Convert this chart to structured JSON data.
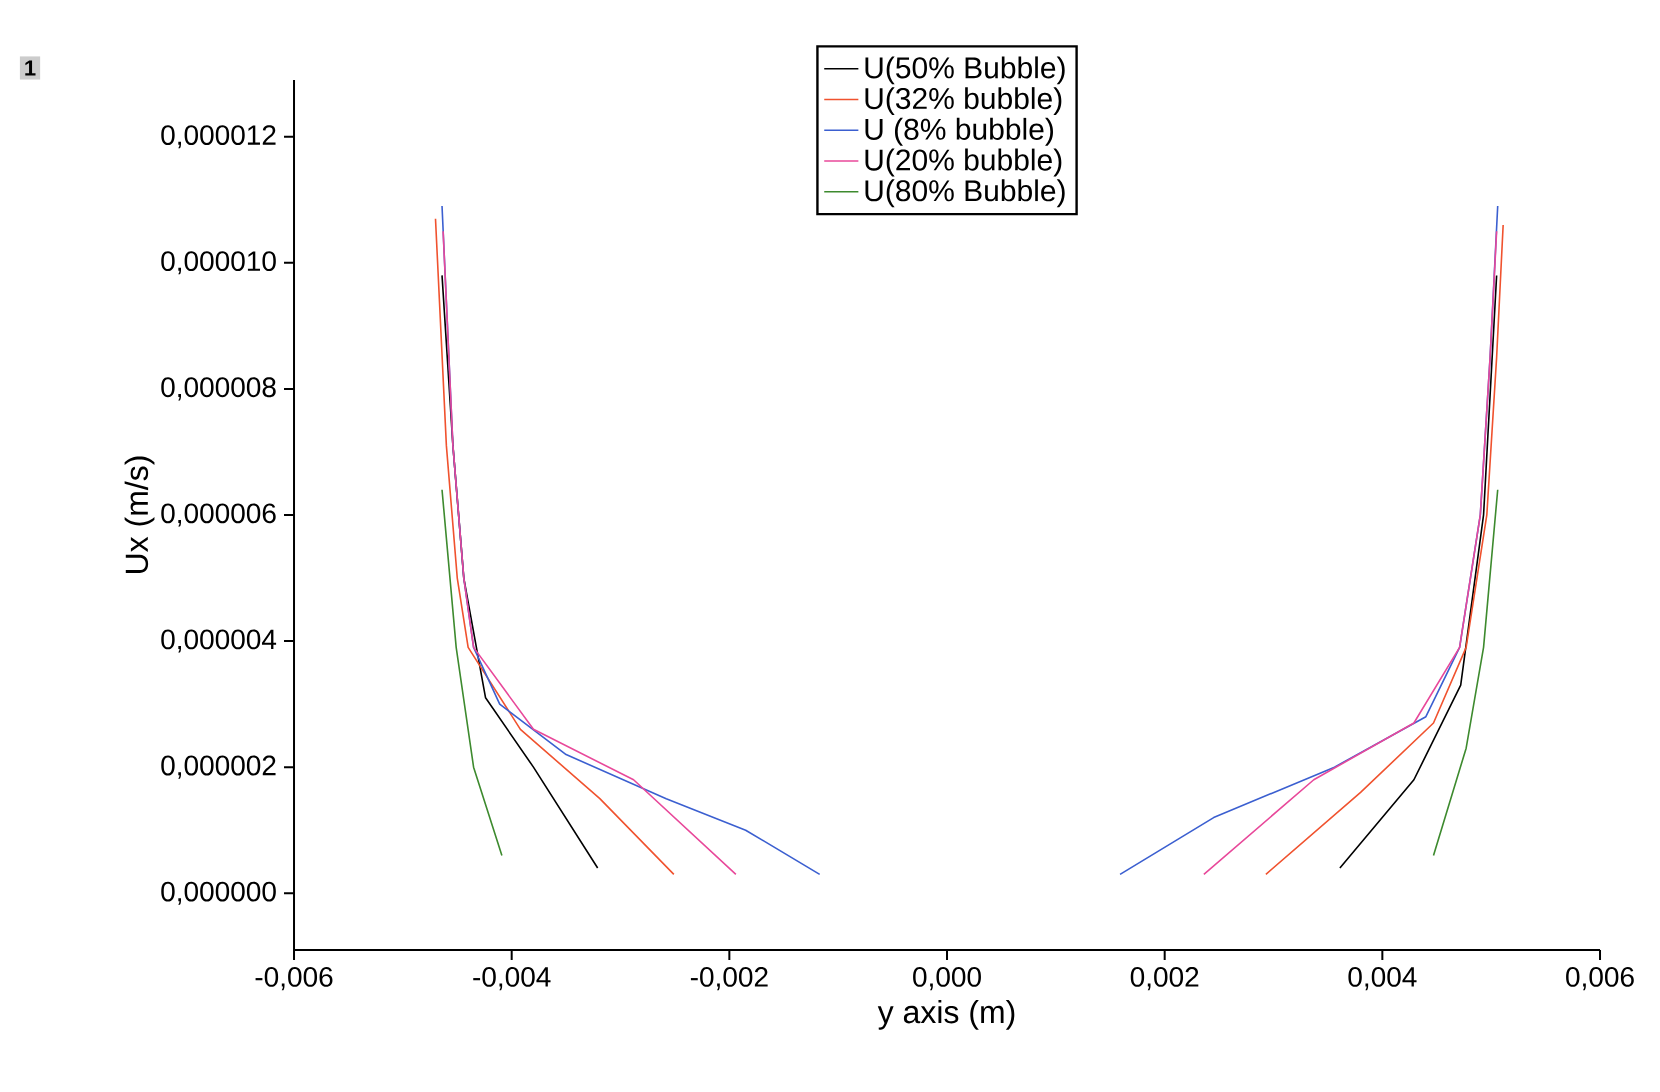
{
  "chart_data": {
    "type": "line",
    "xlabel": "y axis (m)",
    "ylabel": "Ux (m/s)",
    "annotations": [
      "1"
    ],
    "xlim": [
      -0.006,
      0.006
    ],
    "ylim": [
      -9e-07,
      1.29e-05
    ],
    "xticks": [
      {
        "value": -0.006,
        "label": "-0,006"
      },
      {
        "value": -0.004,
        "label": "-0,004"
      },
      {
        "value": -0.002,
        "label": "-0,002"
      },
      {
        "value": 0,
        "label": "0,000"
      },
      {
        "value": 0.002,
        "label": "0,002"
      },
      {
        "value": 0.004,
        "label": "0,004"
      },
      {
        "value": 0.006,
        "label": "0,006"
      }
    ],
    "yticks": [
      {
        "value": 0,
        "label": "0,000000"
      },
      {
        "value": 2e-06,
        "label": "0,000002"
      },
      {
        "value": 4e-06,
        "label": "0,000004"
      },
      {
        "value": 6e-06,
        "label": "0,000006"
      },
      {
        "value": 8e-06,
        "label": "0,000008"
      },
      {
        "value": 1e-05,
        "label": "0,000010"
      },
      {
        "value": 1.2e-05,
        "label": "0,000012"
      }
    ],
    "legend": "top",
    "grid": false,
    "marker": "none",
    "line_style": "solid",
    "series": [
      {
        "name": "U(50% Bubble)",
        "color": "#000000",
        "x": [
          -0.00464,
          -0.00454,
          -0.00444,
          -0.00424,
          -0.0038,
          -0.00321,
          null,
          0.00361,
          0.00429,
          0.00472,
          0.00493,
          0.00505
        ],
        "values": [
          9.8e-06,
          7.1e-06,
          5e-06,
          3.1e-06,
          2e-06,
          4e-07,
          null,
          4e-07,
          1.8e-06,
          3.3e-06,
          6e-06,
          9.8e-06
        ]
      },
      {
        "name": "U(32% bubble)",
        "color": "#f0522e",
        "x": [
          -0.0047,
          -0.0046,
          -0.0045,
          -0.0044,
          -0.00392,
          -0.00319,
          -0.00251,
          null,
          0.00293,
          0.0038,
          0.00447,
          0.00477,
          0.00496,
          0.00505,
          0.00511
        ],
        "values": [
          1.07e-05,
          7.1e-06,
          5e-06,
          3.9e-06,
          2.6e-06,
          1.5e-06,
          3e-07,
          null,
          3e-07,
          1.6e-06,
          2.7e-06,
          3.9e-06,
          6e-06,
          8.5e-06,
          1.06e-05
        ]
      },
      {
        "name": "U (8% bubble)",
        "color": "#3b5fd0",
        "x": [
          -0.00464,
          -0.00454,
          -0.00444,
          -0.00435,
          -0.00411,
          -0.0035,
          -0.00258,
          -0.00185,
          -0.00117,
          null,
          0.00159,
          0.00245,
          0.00356,
          0.0044,
          0.00471,
          0.0049,
          0.00499,
          0.00506
        ],
        "values": [
          1.09e-05,
          7.1e-06,
          5e-06,
          3.9e-06,
          3e-06,
          2.2e-06,
          1.5e-06,
          1e-06,
          3e-07,
          null,
          3e-07,
          1.2e-06,
          2e-06,
          2.8e-06,
          3.9e-06,
          6e-06,
          8.5e-06,
          1.09e-05
        ]
      },
      {
        "name": "U(20% bubble)",
        "color": "#e8489a",
        "x": [
          -0.00463,
          -0.00454,
          -0.00444,
          -0.00435,
          -0.0038,
          -0.00288,
          -0.00194,
          null,
          0.00236,
          0.00337,
          0.00429,
          0.00471,
          0.0049,
          0.00499,
          0.00505
        ],
        "values": [
          1.05e-05,
          7.1e-06,
          5e-06,
          3.9e-06,
          2.6e-06,
          1.8e-06,
          3e-07,
          null,
          3e-07,
          1.8e-06,
          2.7e-06,
          3.9e-06,
          6e-06,
          8.5e-06,
          1.05e-05
        ]
      },
      {
        "name": "U(80% Bubble)",
        "color": "#3d8a2e",
        "x": [
          -0.00464,
          -0.00451,
          -0.00435,
          -0.00409,
          null,
          0.00447,
          0.00477,
          0.00493,
          0.00506
        ],
        "values": [
          6.4e-06,
          3.9e-06,
          2e-06,
          6e-07,
          null,
          6e-07,
          2.3e-06,
          3.9e-06,
          6.4e-06
        ]
      }
    ]
  }
}
